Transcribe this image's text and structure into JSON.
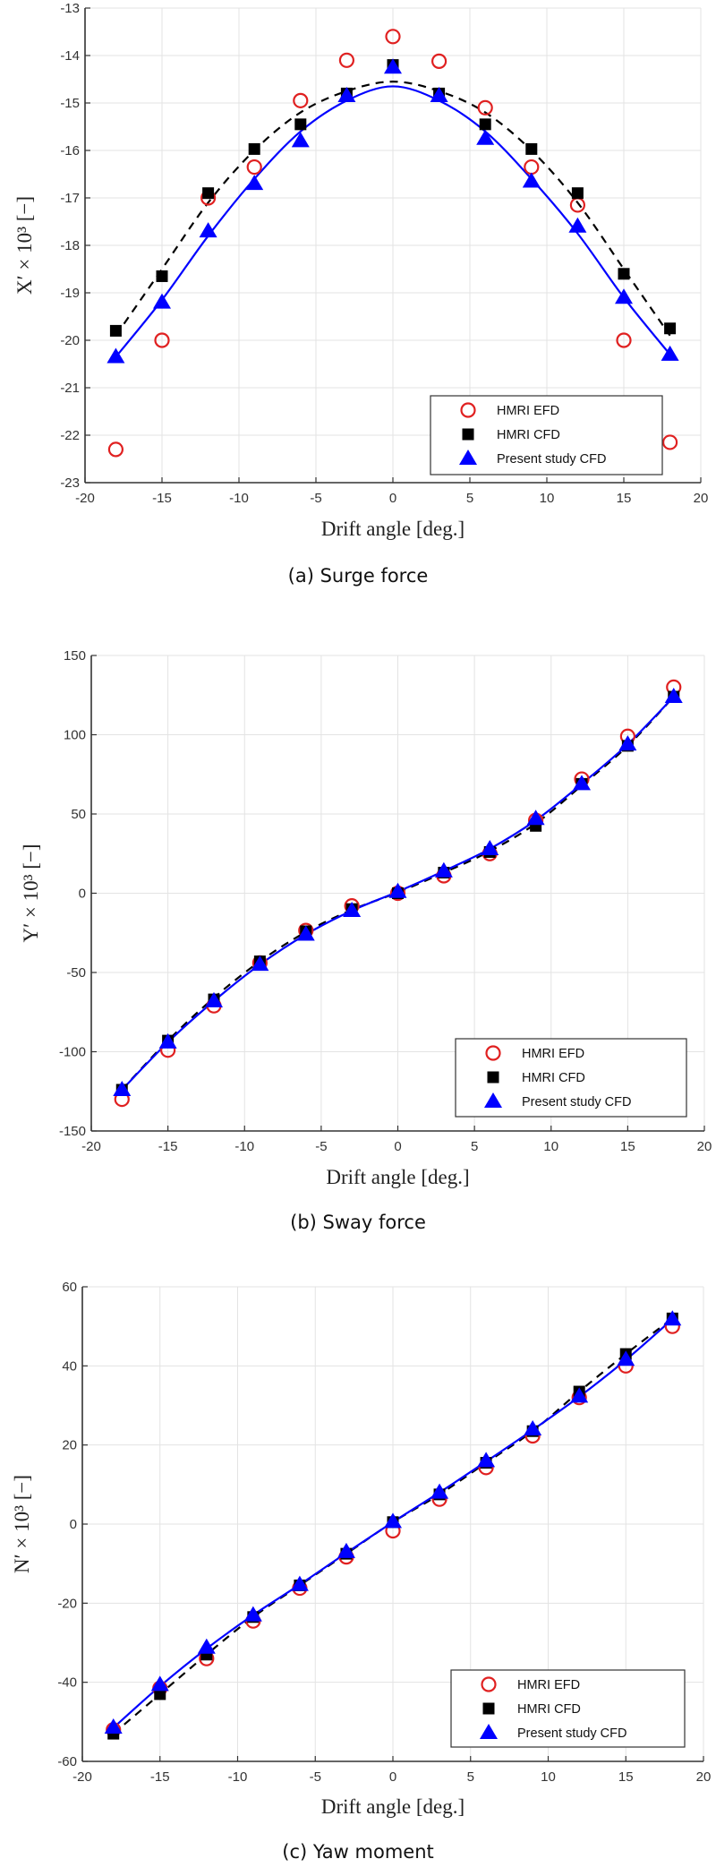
{
  "chart_data": [
    {
      "type": "scatter",
      "caption": "(a) Surge force",
      "xlabel": "Drift angle [deg.]",
      "ylabel": "X′ × 10³ [−]",
      "xlim": [
        -20,
        20
      ],
      "ylim": [
        -23,
        -13
      ],
      "xticks": [
        "-20",
        "-15",
        "-10",
        "-5",
        "0",
        "5",
        "10",
        "15",
        "20"
      ],
      "yticks": [
        "-13",
        "-14",
        "-15",
        "-16",
        "-17",
        "-18",
        "-19",
        "-20",
        "-21",
        "-22",
        "-23"
      ],
      "grid": true,
      "legend_position": "bottom-right",
      "x": [
        -18,
        -15,
        -12,
        -9,
        -6,
        -3,
        0,
        3,
        6,
        9,
        12,
        15,
        18
      ],
      "series": [
        {
          "name": "HMRI EFD",
          "marker": "circle",
          "color": "#e02020",
          "values": [
            -22.3,
            -20.0,
            -17.0,
            -16.35,
            -14.95,
            -14.1,
            -13.6,
            -14.12,
            -15.1,
            -16.35,
            -17.15,
            -20.0,
            -22.15
          ]
        },
        {
          "name": "HMRI CFD",
          "marker": "square",
          "color": "#000000",
          "line": "dashed",
          "values": [
            -19.8,
            -18.65,
            -16.9,
            -15.97,
            -15.45,
            -14.8,
            -14.2,
            -14.8,
            -15.45,
            -15.97,
            -16.9,
            -18.6,
            -19.75
          ],
          "fit": [
            -19.9,
            -18.5,
            -17.1,
            -16.0,
            -15.2,
            -14.75,
            -14.55,
            -14.75,
            -15.2,
            -16.0,
            -17.1,
            -18.5,
            -19.9
          ]
        },
        {
          "name": "Present study CFD",
          "marker": "triangle",
          "color": "#0000ff",
          "line": "solid",
          "values": [
            -20.35,
            -19.2,
            -17.7,
            -16.7,
            -15.8,
            -14.85,
            -14.25,
            -14.85,
            -15.75,
            -16.65,
            -17.6,
            -19.1,
            -20.3
          ],
          "fit": [
            -20.35,
            -19.15,
            -17.8,
            -16.6,
            -15.6,
            -14.95,
            -14.65,
            -14.95,
            -15.6,
            -16.6,
            -17.75,
            -19.1,
            -20.3
          ]
        }
      ]
    },
    {
      "type": "scatter",
      "caption": "(b) Sway force",
      "xlabel": "Drift angle [deg.]",
      "ylabel": "Y′ × 10³ [−]",
      "xlim": [
        -20,
        20
      ],
      "ylim": [
        -150,
        150
      ],
      "xticks": [
        "-20",
        "-15",
        "-10",
        "-5",
        "0",
        "5",
        "10",
        "15",
        "20"
      ],
      "yticks": [
        "150",
        "100",
        "50",
        "0",
        "-50",
        "-100",
        "-150"
      ],
      "grid": true,
      "legend_position": "bottom-right",
      "x": [
        -18,
        -15,
        -12,
        -9,
        -6,
        -3,
        0,
        3,
        6,
        9,
        12,
        15,
        18
      ],
      "series": [
        {
          "name": "HMRI EFD",
          "marker": "circle",
          "color": "#e02020",
          "values": [
            -130,
            -99,
            -71,
            -44,
            -23.5,
            -8,
            0,
            11,
            25,
            46,
            72,
            99,
            130
          ]
        },
        {
          "name": "HMRI CFD",
          "marker": "square",
          "color": "#000000",
          "line": "dashed",
          "values": [
            -124,
            -93,
            -67,
            -43,
            -24,
            -10,
            0,
            13,
            26,
            42.5,
            69,
            93,
            124
          ],
          "fit": [
            -124,
            -93,
            -66,
            -43,
            -24.5,
            -10.5,
            0.5,
            13,
            26.5,
            44,
            68,
            93,
            124
          ]
        },
        {
          "name": "Present study CFD",
          "marker": "triangle",
          "color": "#0000ff",
          "line": "solid",
          "values": [
            -124,
            -94,
            -68,
            -45,
            -26,
            -11,
            1,
            14,
            28,
            47,
            69,
            94,
            124
          ],
          "fit": [
            -124,
            -94,
            -68,
            -45,
            -26,
            -11,
            1,
            14,
            28,
            46,
            69,
            94,
            124
          ]
        }
      ]
    },
    {
      "type": "scatter",
      "caption": "(c) Yaw moment",
      "xlabel": "Drift angle [deg.]",
      "ylabel": "N′ × 10³ [−]",
      "xlim": [
        -20,
        20
      ],
      "ylim": [
        -60,
        60
      ],
      "xticks": [
        "-20",
        "-15",
        "-10",
        "-5",
        "0",
        "5",
        "10",
        "15",
        "20"
      ],
      "yticks": [
        "60",
        "40",
        "20",
        "0",
        "-20",
        "-40",
        "-60"
      ],
      "grid": true,
      "legend_position": "bottom-right",
      "x": [
        -18,
        -15,
        -12,
        -9,
        -6,
        -3,
        0,
        3,
        6,
        9,
        12,
        15,
        18
      ],
      "series": [
        {
          "name": "HMRI EFD",
          "marker": "circle",
          "color": "#e02020",
          "values": [
            -52,
            -41.5,
            -34,
            -24.5,
            -16.2,
            -8.3,
            -1.7,
            6.3,
            14.3,
            22.3,
            32,
            40,
            50
          ]
        },
        {
          "name": "HMRI CFD",
          "marker": "square",
          "color": "#000000",
          "line": "dashed",
          "values": [
            -53,
            -43,
            -33,
            -23.5,
            -15.5,
            -7.5,
            0.5,
            7.5,
            15.5,
            23.5,
            33.5,
            43,
            52
          ]
        },
        {
          "name": "Present study CFD",
          "marker": "triangle",
          "color": "#0000ff",
          "line": "solid",
          "values": [
            -51.4,
            -40.6,
            -31.2,
            -23,
            -15.3,
            -7,
            0.6,
            8,
            16,
            24,
            32.3,
            41.6,
            51.8
          ],
          "fit": [
            -51.5,
            -41,
            -31.5,
            -23,
            -15.3,
            -7.3,
            0.5,
            8,
            15.8,
            23.8,
            32.2,
            41.5,
            51.8
          ]
        }
      ]
    }
  ]
}
